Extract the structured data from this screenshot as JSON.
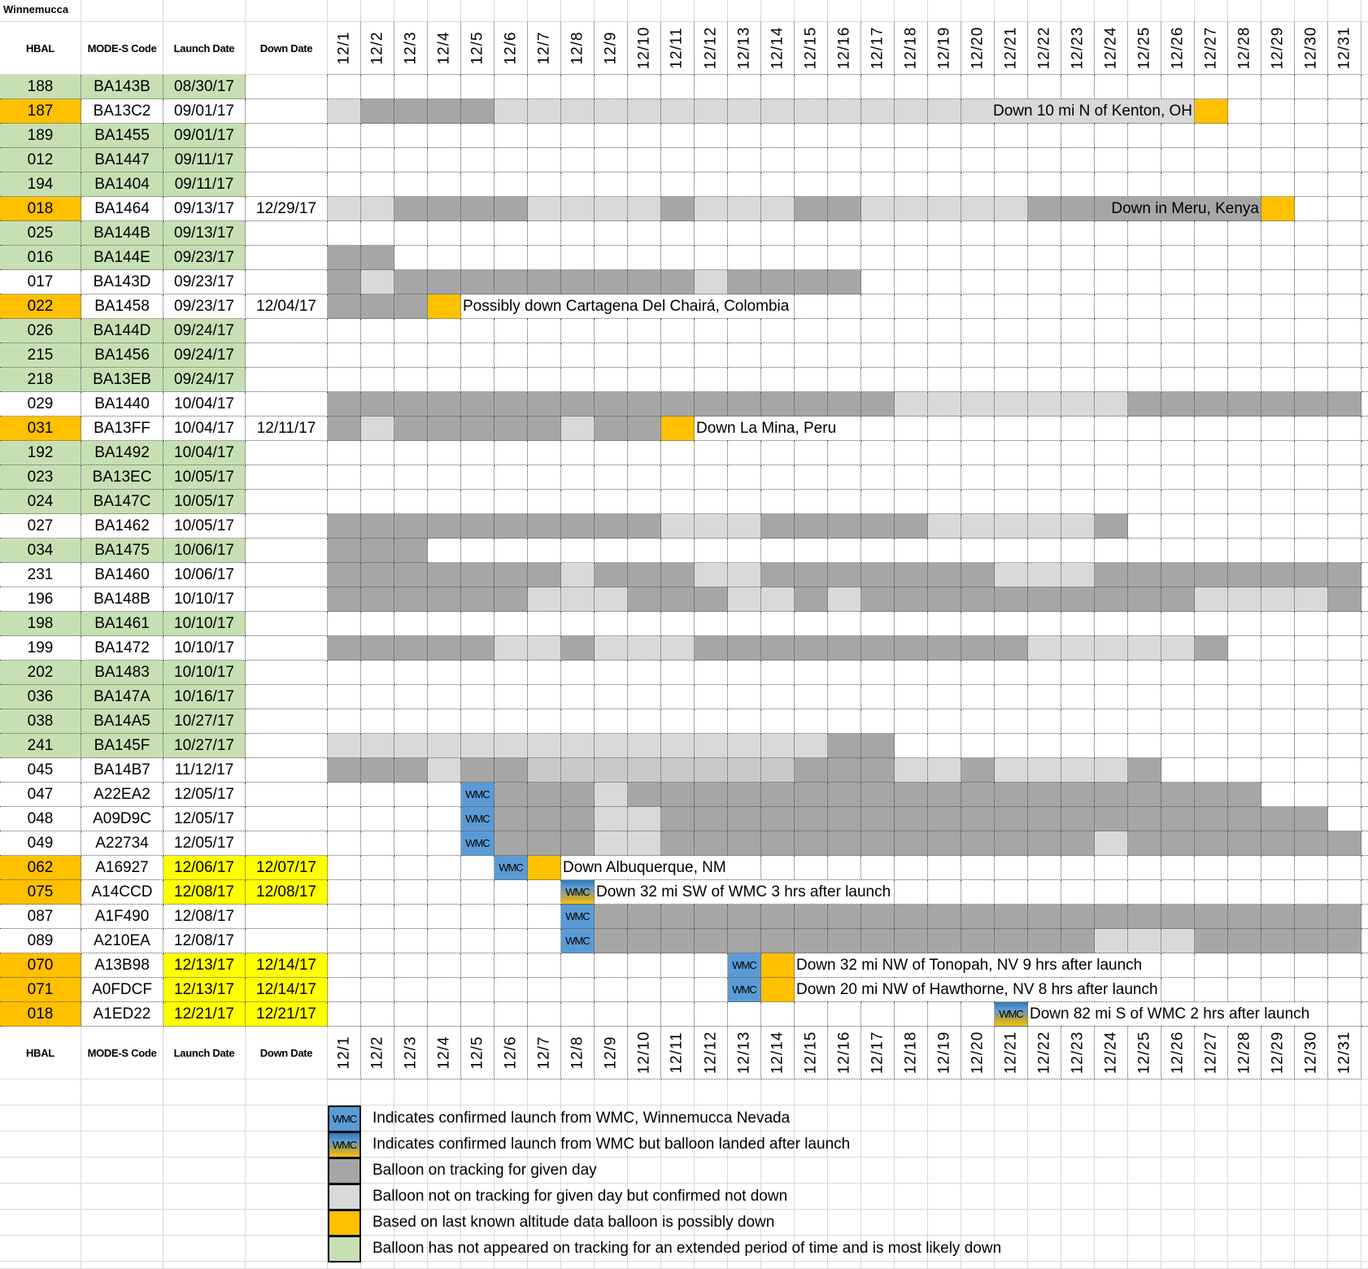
{
  "title": "Winnemucca",
  "headers": {
    "hbal": "HBAL",
    "mode_s": "MODE-S Code",
    "launch": "Launch Date",
    "down": "Down Date"
  },
  "days": [
    "12/1",
    "12/2",
    "12/3",
    "12/4",
    "12/5",
    "12/6",
    "12/7",
    "12/8",
    "12/9",
    "12/10",
    "12/11",
    "12/12",
    "12/13",
    "12/14",
    "12/15",
    "12/16",
    "12/17",
    "12/18",
    "12/19",
    "12/20",
    "12/21",
    "12/22",
    "12/23",
    "12/24",
    "12/25",
    "12/26",
    "12/27",
    "12/28",
    "12/29",
    "12/30",
    "12/31"
  ],
  "wmc_label": "WMC",
  "colors": {
    "D": "#a6a6a6",
    "L": "#d9d9d9",
    "M": "#c9c9c9",
    "O": "#ffc000",
    "W": "#5b9bd5",
    "green": "#c6e0b4",
    "orange": "#ffc000",
    "yellow": "#ffff00"
  },
  "rows": [
    {
      "hbal": "188",
      "code": "BA143B",
      "launch": "08/30/17",
      "down": "",
      "status": "green",
      "yellow": false,
      "cells": ".31"
    },
    {
      "hbal": "187",
      "code": "BA13C2",
      "launch": "09/01/17",
      "down": "",
      "status": "orange",
      "yellow": false,
      "cells": "L1 D4 L21 O1 .4",
      "note": {
        "text": "Down 10 mi N of Kenton, OH",
        "end": 26,
        "align": "right",
        "bg": "L"
      }
    },
    {
      "hbal": "189",
      "code": "BA1455",
      "launch": "09/01/17",
      "down": "",
      "status": "green",
      "yellow": false,
      "cells": ".31"
    },
    {
      "hbal": "012",
      "code": "BA1447",
      "launch": "09/11/17",
      "down": "",
      "status": "green",
      "yellow": false,
      "cells": ".31"
    },
    {
      "hbal": "194",
      "code": "BA1404",
      "launch": "09/11/17",
      "down": "",
      "status": "green",
      "yellow": false,
      "cells": ".31"
    },
    {
      "hbal": "018",
      "code": "BA1464",
      "launch": "09/13/17",
      "down": "12/29/17",
      "status": "orange",
      "yellow": false,
      "cells": "L2 D4 L4 D1 L3 D2 L5 D7 O1 .2",
      "note": {
        "text": "Down in Meru, Kenya",
        "end": 28,
        "align": "right",
        "bg": "D"
      }
    },
    {
      "hbal": "025",
      "code": "BA144B",
      "launch": "09/13/17",
      "down": "",
      "status": "green",
      "yellow": false,
      "cells": ".31"
    },
    {
      "hbal": "016",
      "code": "BA144E",
      "launch": "09/23/17",
      "down": "",
      "status": "green",
      "yellow": false,
      "cells": "D2 .29"
    },
    {
      "hbal": "017",
      "code": "BA143D",
      "launch": "09/23/17",
      "down": "",
      "status": "white",
      "yellow": false,
      "cells": "D1 L1 D9 L1 D4 .15"
    },
    {
      "hbal": "022",
      "code": "BA1458",
      "launch": "09/23/17",
      "down": "12/04/17",
      "status": "orange",
      "yellow": false,
      "cells": "D3 O1 .27",
      "note": {
        "text": "Possibly down Cartagena Del Chairá, Colombia",
        "start": 5,
        "align": "left"
      }
    },
    {
      "hbal": "026",
      "code": "BA144D",
      "launch": "09/24/17",
      "down": "",
      "status": "green",
      "yellow": false,
      "cells": ".31"
    },
    {
      "hbal": "215",
      "code": "BA1456",
      "launch": "09/24/17",
      "down": "",
      "status": "green",
      "yellow": false,
      "cells": ".31"
    },
    {
      "hbal": "218",
      "code": "BA13EB",
      "launch": "09/24/17",
      "down": "",
      "status": "green",
      "yellow": false,
      "cells": ".31"
    },
    {
      "hbal": "029",
      "code": "BA1440",
      "launch": "10/04/17",
      "down": "",
      "status": "white",
      "yellow": false,
      "cells": "D17 L7 D7"
    },
    {
      "hbal": "031",
      "code": "BA13FF",
      "launch": "10/04/17",
      "down": "12/11/17",
      "status": "orange",
      "yellow": false,
      "cells": "D1 L1 D5 L1 D2 O1 .20",
      "note": {
        "text": "Down La Mina, Peru",
        "start": 12,
        "align": "left"
      }
    },
    {
      "hbal": "192",
      "code": "BA1492",
      "launch": "10/04/17",
      "down": "",
      "status": "green",
      "yellow": false,
      "cells": ".31"
    },
    {
      "hbal": "023",
      "code": "BA13EC",
      "launch": "10/05/17",
      "down": "",
      "status": "green",
      "yellow": false,
      "cells": ".31"
    },
    {
      "hbal": "024",
      "code": "BA147C",
      "launch": "10/05/17",
      "down": "",
      "status": "green",
      "yellow": false,
      "cells": ".31"
    },
    {
      "hbal": "027",
      "code": "BA1462",
      "launch": "10/05/17",
      "down": "",
      "status": "white",
      "yellow": false,
      "cells": "D10 L3 D5 L5 D1 .7"
    },
    {
      "hbal": "034",
      "code": "BA1475",
      "launch": "10/06/17",
      "down": "",
      "status": "green",
      "yellow": false,
      "cells": "D3 .28"
    },
    {
      "hbal": "231",
      "code": "BA1460",
      "launch": "10/06/17",
      "down": "",
      "status": "white",
      "yellow": false,
      "cells": "D7 L1 D3 L2 D7 L3 D8"
    },
    {
      "hbal": "196",
      "code": "BA148B",
      "launch": "10/10/17",
      "down": "",
      "status": "white",
      "yellow": false,
      "cells": "D6 L3 D3 L2 D1 L1 D10 L4 D1"
    },
    {
      "hbal": "198",
      "code": "BA1461",
      "launch": "10/10/17",
      "down": "",
      "status": "green",
      "yellow": false,
      "cells": ".31"
    },
    {
      "hbal": "199",
      "code": "BA1472",
      "launch": "10/10/17",
      "down": "",
      "status": "white",
      "yellow": false,
      "cells": "D5 L2 D1 L3 D10 L5 D1 .4"
    },
    {
      "hbal": "202",
      "code": "BA1483",
      "launch": "10/10/17",
      "down": "",
      "status": "green",
      "yellow": false,
      "cells": ".31"
    },
    {
      "hbal": "036",
      "code": "BA147A",
      "launch": "10/16/17",
      "down": "",
      "status": "green",
      "yellow": false,
      "cells": ".31"
    },
    {
      "hbal": "038",
      "code": "BA14A5",
      "launch": "10/27/17",
      "down": "",
      "status": "green",
      "yellow": false,
      "cells": ".31"
    },
    {
      "hbal": "241",
      "code": "BA145F",
      "launch": "10/27/17",
      "down": "",
      "status": "green",
      "yellow": false,
      "cells": "L15 D2 .14"
    },
    {
      "hbal": "045",
      "code": "BA14B7",
      "launch": "11/12/17",
      "down": "",
      "status": "white",
      "yellow": false,
      "cells": "D3 L1 D2 M8 D3 L2 D1 L4 D1 .6"
    },
    {
      "hbal": "047",
      "code": "A22EA2",
      "launch": "12/05/17",
      "down": "",
      "status": "white",
      "yellow": false,
      "cells": ".4 W1 D3 L1 D19 .3"
    },
    {
      "hbal": "048",
      "code": "A09D9C",
      "launch": "12/05/17",
      "down": "",
      "status": "white",
      "yellow": false,
      "cells": ".4 W1 D3 L2 D20 .1"
    },
    {
      "hbal": "049",
      "code": "A22734",
      "launch": "12/05/17",
      "down": "",
      "status": "white",
      "yellow": false,
      "cells": ".4 W1 D3 L2 D13 L1 D7"
    },
    {
      "hbal": "062",
      "code": "A16927",
      "launch": "12/06/17",
      "down": "12/07/17",
      "status": "orange",
      "yellow": true,
      "cells": ".5 W1 O1 .24",
      "note": {
        "text": "Down Albuquerque, NM",
        "start": 8,
        "align": "left"
      }
    },
    {
      "hbal": "075",
      "code": "A14CCD",
      "launch": "12/08/17",
      "down": "12/08/17",
      "status": "orange",
      "yellow": true,
      "cells": ".7 G1 .23",
      "note": {
        "text": "Down 32 mi SW of WMC 3 hrs after launch",
        "start": 9,
        "align": "left"
      }
    },
    {
      "hbal": "087",
      "code": "A1F490",
      "launch": "12/08/17",
      "down": "",
      "status": "white",
      "yellow": false,
      "cells": ".7 W1 D23"
    },
    {
      "hbal": "089",
      "code": "A210EA",
      "launch": "12/08/17",
      "down": "",
      "status": "white",
      "yellow": false,
      "cells": ".7 W1 D15 L3 D5"
    },
    {
      "hbal": "070",
      "code": "A13B98",
      "launch": "12/13/17",
      "down": "12/14/17",
      "status": "orange",
      "yellow": true,
      "cells": ".12 W1 O1 .17",
      "note": {
        "text": "Down 32 mi NW of Tonopah, NV 9 hrs after launch",
        "start": 15,
        "align": "left"
      }
    },
    {
      "hbal": "071",
      "code": "A0FDCF",
      "launch": "12/13/17",
      "down": "12/14/17",
      "status": "orange",
      "yellow": true,
      "cells": ".12 W1 O1 .17",
      "note": {
        "text": "Down 20 mi NW of Hawthorne, NV 8 hrs after launch",
        "start": 15,
        "align": "left"
      }
    },
    {
      "hbal": "018",
      "code": "A1ED22",
      "launch": "12/21/17",
      "down": "12/21/17",
      "status": "orange",
      "yellow": true,
      "cells": ".20 G1 .10",
      "note": {
        "text": "Down 82 mi S of WMC 2 hrs after launch",
        "start": 22,
        "align": "left"
      }
    }
  ],
  "legend": [
    {
      "swatch": "W",
      "text": "Indicates confirmed launch from WMC, Winnemucca Nevada"
    },
    {
      "swatch": "G",
      "text": "Indicates confirmed launch from WMC but balloon landed after launch"
    },
    {
      "swatch": "D",
      "text": "Balloon on tracking for given day"
    },
    {
      "swatch": "L",
      "text": "Balloon not on tracking for given day but confirmed not down"
    },
    {
      "swatch": "O",
      "text": "Based on last known altitude data balloon is possibly down"
    },
    {
      "swatch": "green",
      "text": "Balloon has not appeared on tracking for an extended period of time and is most likely down"
    }
  ]
}
